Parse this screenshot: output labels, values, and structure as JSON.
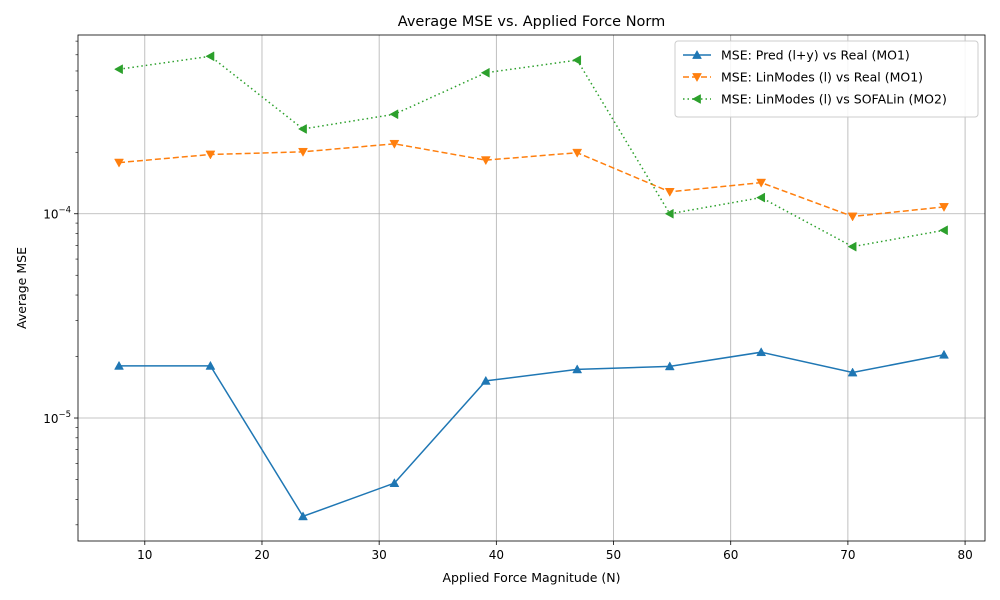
{
  "chart_data": {
    "type": "line",
    "title": "Average MSE vs. Applied Force Norm",
    "xlabel": "Applied Force Magnitude (N)",
    "ylabel": "Average MSE",
    "xlim": [
      4.3,
      81.7
    ],
    "ylim": [
      2.5e-06,
      0.00075
    ],
    "yscale": "log",
    "grid": true,
    "legend_position": "top-right",
    "x_ticks": [
      10,
      20,
      30,
      40,
      50,
      60,
      70,
      80
    ],
    "y_ticks": [
      {
        "value": 1e-05,
        "label": "10^-5"
      },
      {
        "value": 0.0001,
        "label": "10^-4"
      }
    ],
    "x": [
      7.8,
      15.6,
      23.5,
      31.3,
      39.1,
      46.9,
      54.8,
      62.6,
      70.4,
      78.2
    ],
    "series": [
      {
        "name": "MSE: Pred (l+y) vs Real (MO1)",
        "color": "#1f77b4",
        "dash": "solid",
        "marker": "triangle-up",
        "values": [
          1.8e-05,
          1.8e-05,
          3.3e-06,
          4.8e-06,
          1.52e-05,
          1.73e-05,
          1.79e-05,
          2.1e-05,
          1.67e-05,
          2.04e-05
        ]
      },
      {
        "name": "MSE: LinModes (l) vs Real (MO1)",
        "color": "#ff7f0e",
        "dash": "dashed",
        "marker": "triangle-down",
        "values": [
          0.000178,
          0.000195,
          0.000201,
          0.00022,
          0.000183,
          0.000199,
          0.000128,
          0.000142,
          9.7e-05,
          0.000108
        ]
      },
      {
        "name": "MSE: LinModes (l) vs SOFALin (MO2)",
        "color": "#2ca02c",
        "dash": "dotted",
        "marker": "triangle-left",
        "values": [
          0.00051,
          0.00059,
          0.00026,
          0.000307,
          0.00049,
          0.000565,
          0.0001,
          0.00012,
          6.9e-05,
          8.3e-05
        ]
      }
    ]
  }
}
